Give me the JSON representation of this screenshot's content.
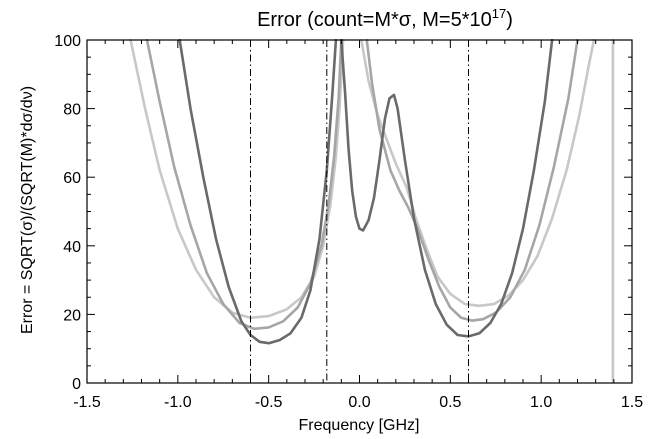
{
  "chart_data": {
    "type": "line",
    "title": {
      "prefix": "Error (count=M*σ, M=5*10",
      "superscript": "17",
      "suffix": ")"
    },
    "xlabel": "Frequency [GHz]",
    "ylabel": "Error = SQRT(σ)/(SQRT(M)*dσ/dν)",
    "xlim": [
      -1.5,
      1.5
    ],
    "ylim": [
      0,
      100
    ],
    "x_ticks": [
      -1.5,
      -1.0,
      -0.5,
      0.0,
      0.5,
      1.0,
      1.5
    ],
    "x_tick_labels": [
      "-1.5",
      "-1.0",
      "-0.5",
      "0.0",
      "0.5",
      "1.0",
      "1.5"
    ],
    "y_ticks": [
      0,
      20,
      40,
      60,
      80,
      100
    ],
    "y_tick_labels": [
      "0",
      "20",
      "40",
      "60",
      "80",
      "100"
    ],
    "grid": false,
    "vertical_lines": [
      -0.6,
      -0.18,
      0.6
    ],
    "series": [
      {
        "color": "#6a6a6a",
        "segments": [
          [
            [
              -0.99,
              100
            ],
            [
              -0.93,
              80
            ],
            [
              -0.86,
              60
            ],
            [
              -0.79,
              42
            ],
            [
              -0.72,
              28
            ],
            [
              -0.65,
              18
            ],
            [
              -0.6,
              14
            ],
            [
              -0.55,
              12
            ],
            [
              -0.5,
              11.6
            ],
            [
              -0.44,
              12.5
            ],
            [
              -0.38,
              14.5
            ],
            [
              -0.32,
              19
            ],
            [
              -0.27,
              27
            ],
            [
              -0.22,
              42
            ],
            [
              -0.18,
              62
            ],
            [
              -0.15,
              84
            ],
            [
              -0.13,
              100
            ]
          ],
          [
            [
              -0.1,
              100
            ],
            [
              -0.08,
              85
            ],
            [
              -0.06,
              68
            ],
            [
              -0.04,
              56
            ],
            [
              -0.02,
              48.5
            ],
            [
              0.0,
              45
            ],
            [
              0.02,
              44.5
            ],
            [
              0.05,
              47.5
            ],
            [
              0.08,
              54
            ],
            [
              0.11,
              65
            ],
            [
              0.14,
              77
            ],
            [
              0.165,
              83
            ],
            [
              0.19,
              84
            ],
            [
              0.21,
              80
            ],
            [
              0.25,
              65
            ],
            [
              0.3,
              48
            ],
            [
              0.36,
              33
            ],
            [
              0.42,
              23
            ],
            [
              0.48,
              17
            ],
            [
              0.54,
              14
            ],
            [
              0.6,
              13.6
            ],
            [
              0.66,
              14.5
            ],
            [
              0.72,
              17.5
            ],
            [
              0.78,
              23
            ],
            [
              0.84,
              32
            ],
            [
              0.9,
              45
            ],
            [
              0.96,
              62
            ],
            [
              1.02,
              82
            ],
            [
              1.06,
              100
            ]
          ]
        ]
      },
      {
        "color": "#a6a6a6",
        "segments": [
          [
            [
              -1.17,
              100
            ],
            [
              -1.1,
              82
            ],
            [
              -1.02,
              63
            ],
            [
              -0.93,
              46
            ],
            [
              -0.84,
              32
            ],
            [
              -0.75,
              23
            ],
            [
              -0.66,
              17.5
            ],
            [
              -0.58,
              15.8
            ],
            [
              -0.5,
              16.2
            ],
            [
              -0.42,
              18
            ],
            [
              -0.34,
              22
            ],
            [
              -0.27,
              29
            ],
            [
              -0.21,
              40
            ],
            [
              -0.17,
              52
            ],
            [
              -0.14,
              66
            ],
            [
              -0.115,
              83
            ],
            [
              -0.1,
              100
            ]
          ],
          [
            [
              0.04,
              100
            ],
            [
              0.07,
              87
            ],
            [
              0.11,
              74
            ],
            [
              0.17,
              62
            ],
            [
              0.22,
              56
            ],
            [
              0.27,
              51
            ],
            [
              0.32,
              45
            ],
            [
              0.38,
              36
            ],
            [
              0.44,
              28
            ],
            [
              0.5,
              22
            ],
            [
              0.56,
              19
            ],
            [
              0.62,
              18.2
            ],
            [
              0.68,
              18.6
            ],
            [
              0.75,
              20.5
            ],
            [
              0.83,
              25
            ],
            [
              0.91,
              33
            ],
            [
              0.99,
              46
            ],
            [
              1.07,
              63
            ],
            [
              1.15,
              83
            ],
            [
              1.2,
              100
            ]
          ]
        ]
      },
      {
        "color": "#c8c8c8",
        "segments": [
          [
            [
              -1.26,
              100
            ],
            [
              -1.18,
              80
            ],
            [
              -1.1,
              62
            ],
            [
              -1.0,
              45
            ],
            [
              -0.9,
              33
            ],
            [
              -0.8,
              25
            ],
            [
              -0.7,
              20.5
            ],
            [
              -0.6,
              19
            ],
            [
              -0.5,
              19.5
            ],
            [
              -0.4,
              21.5
            ],
            [
              -0.32,
              25
            ],
            [
              -0.25,
              31
            ],
            [
              -0.2,
              40
            ],
            [
              -0.16,
              52
            ],
            [
              -0.13,
              66
            ],
            [
              -0.11,
              80
            ],
            [
              -0.09,
              100
            ]
          ],
          [
            [
              0.01,
              100
            ],
            [
              0.05,
              88
            ],
            [
              0.1,
              78
            ],
            [
              0.15,
              71
            ],
            [
              0.2,
              64
            ],
            [
              0.26,
              57
            ],
            [
              0.31,
              48
            ],
            [
              0.37,
              39
            ],
            [
              0.43,
              31
            ],
            [
              0.5,
              26
            ],
            [
              0.58,
              23
            ],
            [
              0.66,
              22.5
            ],
            [
              0.74,
              23
            ],
            [
              0.82,
              25.5
            ],
            [
              0.9,
              30
            ],
            [
              0.98,
              37
            ],
            [
              1.06,
              48
            ],
            [
              1.14,
              62
            ],
            [
              1.21,
              78
            ],
            [
              1.26,
              92
            ],
            [
              1.29,
              100
            ]
          ],
          [
            [
              1.395,
              0
            ],
            [
              1.395,
              100
            ]
          ]
        ]
      }
    ]
  }
}
